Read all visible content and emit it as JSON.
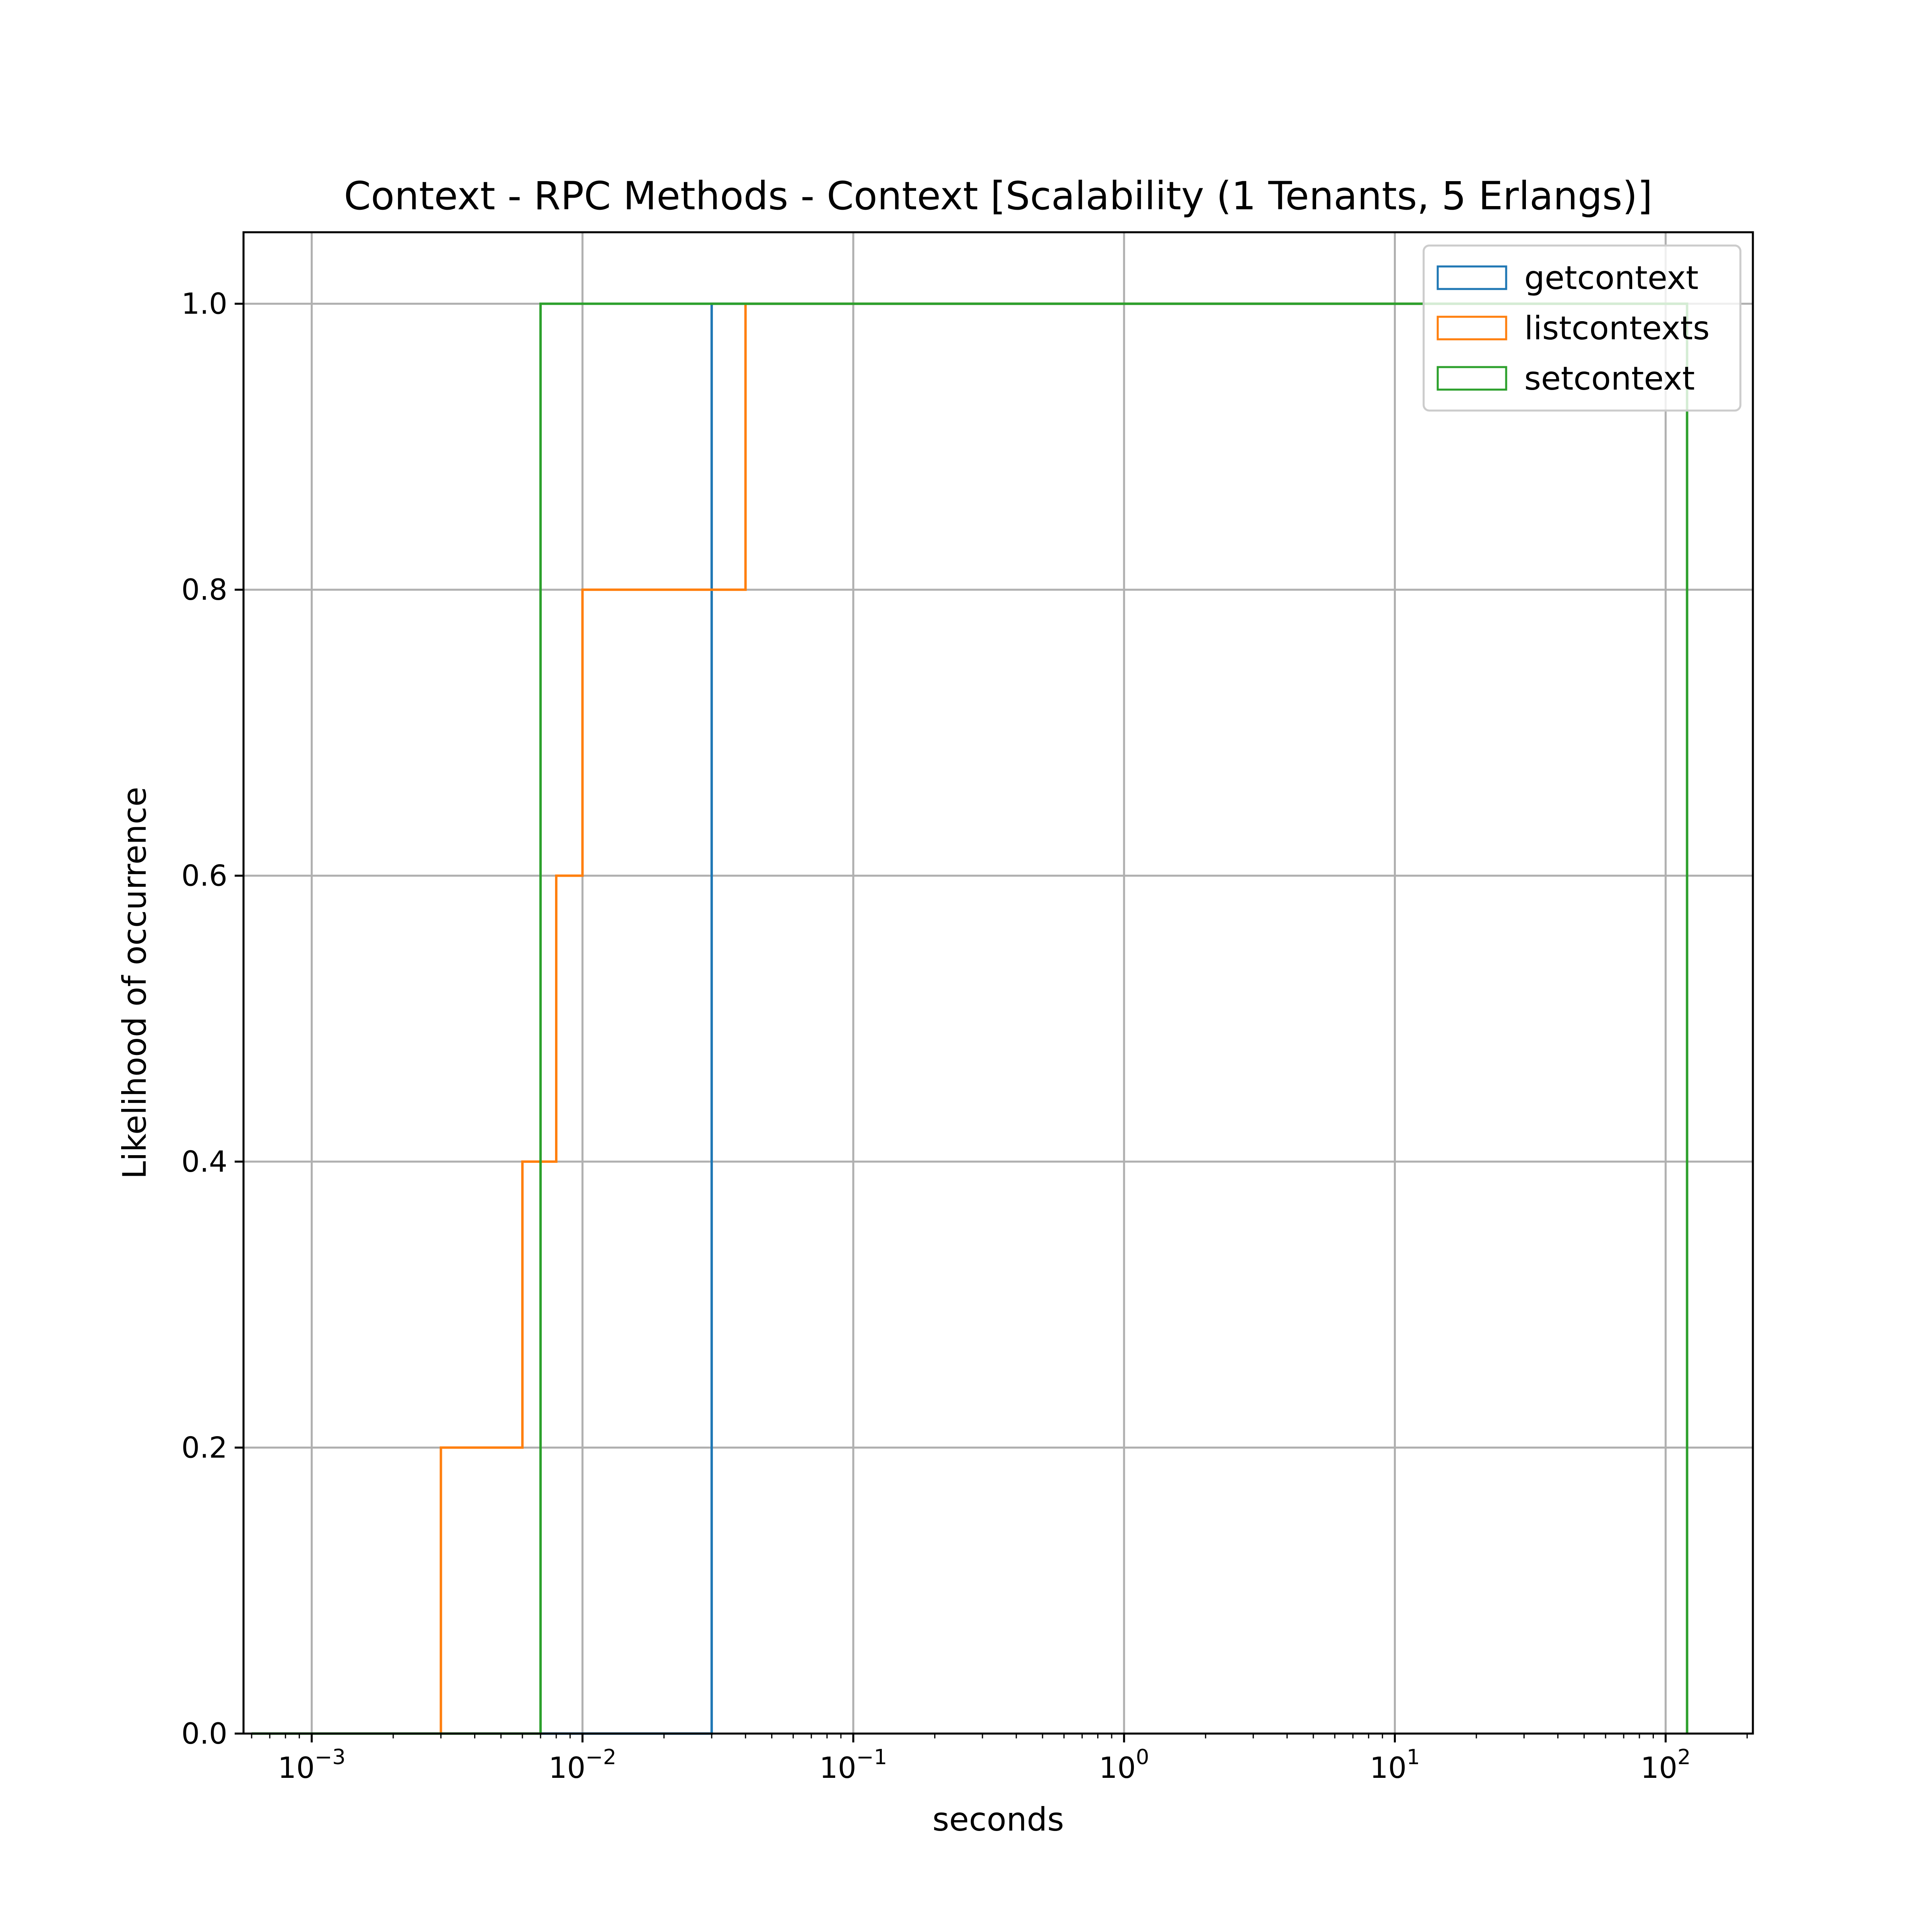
{
  "chart_data": {
    "type": "line",
    "title": "Context - RPC Methods - Context [Scalability (1 Tenants, 5 Erlangs)]",
    "xlabel": "seconds",
    "ylabel": "Likelihood of occurrence",
    "xscale": "log",
    "xlim": [
      0.00056,
      210
    ],
    "ylim": [
      0,
      1.05
    ],
    "grid": true,
    "legend_position": "top-right",
    "x_ticks": [
      {
        "value": 0.001,
        "base": "10",
        "exp": "−3"
      },
      {
        "value": 0.01,
        "base": "10",
        "exp": "−2"
      },
      {
        "value": 0.1,
        "base": "10",
        "exp": "−1"
      },
      {
        "value": 1,
        "base": "10",
        "exp": "0"
      },
      {
        "value": 10,
        "base": "10",
        "exp": "1"
      },
      {
        "value": 100,
        "base": "10",
        "exp": "2"
      }
    ],
    "y_ticks": [
      {
        "value": 0.0,
        "label": "0.0"
      },
      {
        "value": 0.2,
        "label": "0.2"
      },
      {
        "value": 0.4,
        "label": "0.4"
      },
      {
        "value": 0.6,
        "label": "0.6"
      },
      {
        "value": 0.8,
        "label": "0.8"
      },
      {
        "value": 1.0,
        "label": "1.0"
      }
    ],
    "series": [
      {
        "name": "getcontext",
        "color": "#1f77b4",
        "step_edges": [
          0.0006,
          0.03,
          120
        ],
        "values": [
          0.0,
          1.0
        ]
      },
      {
        "name": "listcontexts",
        "color": "#ff7f0e",
        "step_edges": [
          0.0006,
          0.003,
          0.006,
          0.008,
          0.01,
          0.04,
          120
        ],
        "values": [
          0.0,
          0.2,
          0.4,
          0.6,
          0.8,
          1.0
        ]
      },
      {
        "name": "setcontext",
        "color": "#2ca02c",
        "step_edges": [
          0.0006,
          0.007,
          120
        ],
        "values": [
          0.0,
          1.0
        ]
      }
    ]
  }
}
